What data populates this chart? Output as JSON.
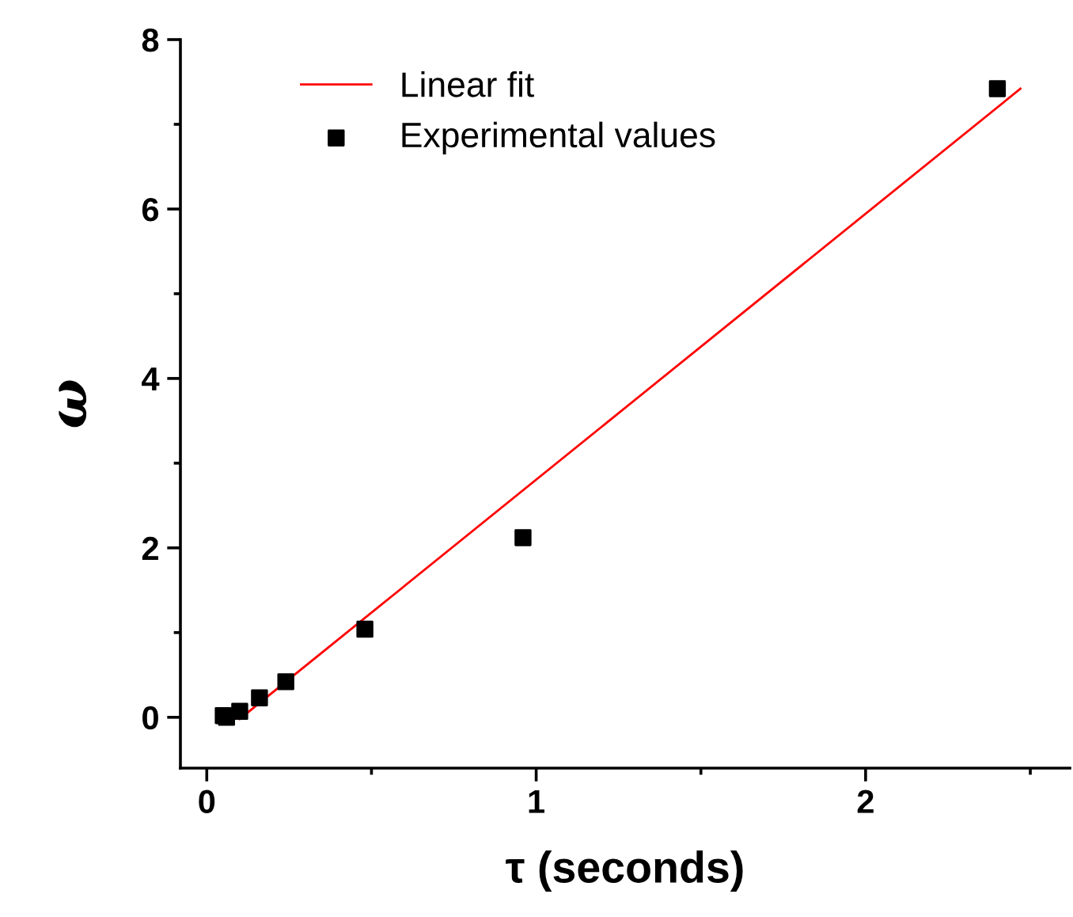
{
  "chart_data": {
    "type": "scatter",
    "xlabel": "τ (seconds)",
    "ylabel": "ω",
    "xlim": [
      -0.08,
      2.62
    ],
    "ylim": [
      -0.6,
      8
    ],
    "xticks": [
      0,
      1,
      2
    ],
    "yticks": [
      0,
      2,
      4,
      6,
      8
    ],
    "legend": "top left",
    "grid": false,
    "series": [
      {
        "name": "Linear fit",
        "type": "line",
        "color": "#ff0000",
        "x": [
          0.1,
          2.47
        ],
        "values": [
          -0.02,
          7.42
        ],
        "marker": "none",
        "line_style": "solid"
      },
      {
        "name": "Experimental values",
        "color": "#000000",
        "marker": "square",
        "x": [
          0.05,
          0.06,
          0.1,
          0.16,
          0.24,
          0.48,
          0.96,
          2.4
        ],
        "values": [
          0.02,
          0.0,
          0.07,
          0.23,
          0.42,
          1.04,
          2.12,
          7.42
        ]
      }
    ]
  }
}
